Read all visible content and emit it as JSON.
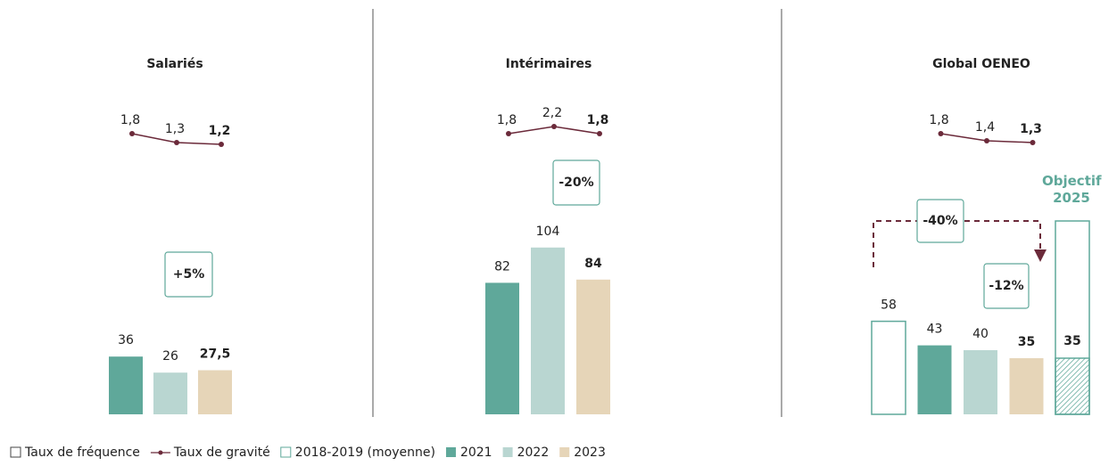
{
  "chart_data": [
    {
      "type": "bar",
      "title": "Salariés",
      "values": [
        36,
        26,
        27.5
      ],
      "value_labels": [
        "36",
        "26",
        "27,5"
      ],
      "colors": [
        "#5fa89a",
        "#b9d6d1",
        "#e6d5b8"
      ],
      "bar_styles": [
        "solid",
        "solid",
        "solid"
      ],
      "line": {
        "values": [
          1.8,
          1.3,
          1.2
        ],
        "value_labels": [
          "1,8",
          "1,3",
          "1,2"
        ],
        "color": "#6b2a3a"
      },
      "annotations": [
        "+5%"
      ]
    },
    {
      "type": "bar",
      "title": "Intérimaires",
      "values": [
        82,
        104,
        84
      ],
      "value_labels": [
        "82",
        "104",
        "84"
      ],
      "colors": [
        "#5fa89a",
        "#b9d6d1",
        "#e6d5b8"
      ],
      "bar_styles": [
        "solid",
        "solid",
        "solid"
      ],
      "line": {
        "values": [
          1.8,
          2.2,
          1.8
        ],
        "value_labels": [
          "1,8",
          "2,2",
          "1,8"
        ],
        "color": "#6b2a3a"
      },
      "annotations": [
        "-20%"
      ]
    },
    {
      "type": "bar",
      "title": "Global OENEO",
      "values": [
        58,
        43,
        40,
        35,
        35
      ],
      "value_labels": [
        "58",
        "43",
        "40",
        "35",
        "35"
      ],
      "colors": [
        "#5fa89a",
        "#5fa89a",
        "#b9d6d1",
        "#e6d5b8",
        "#5fa89a"
      ],
      "bar_styles": [
        "outline",
        "solid",
        "solid",
        "solid",
        "hatched"
      ],
      "target_label": "Objectif 2025",
      "line": {
        "values": [
          1.8,
          1.4,
          1.3
        ],
        "value_labels": [
          "1,8",
          "1,4",
          "1,3"
        ],
        "color": "#6b2a3a"
      },
      "annotations": [
        "-40%",
        "-12%"
      ]
    }
  ],
  "legend": [
    {
      "name": "Taux de fréquence",
      "marker": "square-outline",
      "color": "#444444"
    },
    {
      "name": "Taux de gravité",
      "marker": "line-dot",
      "color": "#6b2a3a"
    },
    {
      "name": "2018-2019 (moyenne)",
      "marker": "square-outline",
      "color": "#5fa89a"
    },
    {
      "name": "2021",
      "marker": "square",
      "color": "#5fa89a"
    },
    {
      "name": "2022",
      "marker": "square",
      "color": "#b9d6d1"
    },
    {
      "name": "2023",
      "marker": "square",
      "color": "#e6d5b8"
    }
  ]
}
